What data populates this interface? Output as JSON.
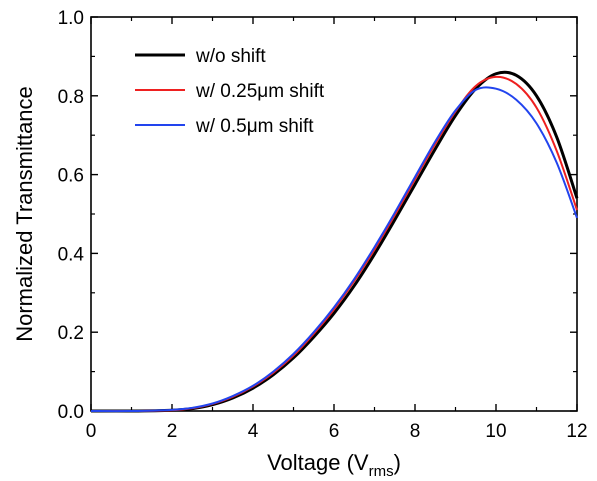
{
  "chart_data": {
    "type": "line",
    "title": "",
    "xlabel": "Voltage (V",
    "xlabel_sub": "rms",
    "xlabel_end": ")",
    "ylabel": "Normalized Transmittance",
    "xlim": [
      0,
      12
    ],
    "ylim": [
      0,
      1.0
    ],
    "xticks": [
      "0",
      "2",
      "4",
      "6",
      "8",
      "10",
      "12"
    ],
    "yticks": [
      "0.0",
      "0.2",
      "0.4",
      "0.6",
      "0.8",
      "1.0"
    ],
    "grid": false,
    "legend_position": "top-left",
    "series": [
      {
        "name": "w/o shift",
        "color": "#000000",
        "x": [
          0,
          1,
          2,
          2.5,
          3,
          3.5,
          4,
          4.5,
          5,
          5.5,
          6,
          6.5,
          7,
          7.5,
          8,
          8.5,
          9,
          9.5,
          10,
          10.5,
          11,
          11.5,
          12
        ],
        "y": [
          0,
          0,
          0.002,
          0.006,
          0.016,
          0.033,
          0.058,
          0.092,
          0.135,
          0.188,
          0.248,
          0.318,
          0.398,
          0.485,
          0.575,
          0.665,
          0.75,
          0.818,
          0.856,
          0.852,
          0.8,
          0.695,
          0.54
        ]
      },
      {
        "name": "w/ 0.25μm shift",
        "color": "#ee2020",
        "x": [
          0,
          1,
          2,
          2.5,
          3,
          3.5,
          4,
          4.5,
          5,
          5.5,
          6,
          6.5,
          7,
          7.5,
          8,
          8.5,
          9,
          9.5,
          10,
          10.5,
          11,
          11.5,
          12
        ],
        "y": [
          0,
          0,
          0.002,
          0.007,
          0.018,
          0.036,
          0.062,
          0.097,
          0.141,
          0.196,
          0.258,
          0.33,
          0.41,
          0.497,
          0.588,
          0.678,
          0.76,
          0.825,
          0.848,
          0.83,
          0.77,
          0.66,
          0.51
        ]
      },
      {
        "name": "w/ 0.5μm shift",
        "color": "#2244ee",
        "x": [
          0,
          1,
          2,
          2.5,
          3,
          3.5,
          4,
          4.5,
          5,
          5.5,
          6,
          6.5,
          7,
          7.5,
          8,
          8.5,
          9,
          9.5,
          10,
          10.5,
          11,
          11.5,
          12
        ],
        "y": [
          0,
          0,
          0.003,
          0.008,
          0.019,
          0.038,
          0.064,
          0.1,
          0.145,
          0.2,
          0.263,
          0.335,
          0.416,
          0.503,
          0.594,
          0.684,
          0.763,
          0.815,
          0.818,
          0.79,
          0.73,
          0.63,
          0.49
        ]
      }
    ]
  }
}
